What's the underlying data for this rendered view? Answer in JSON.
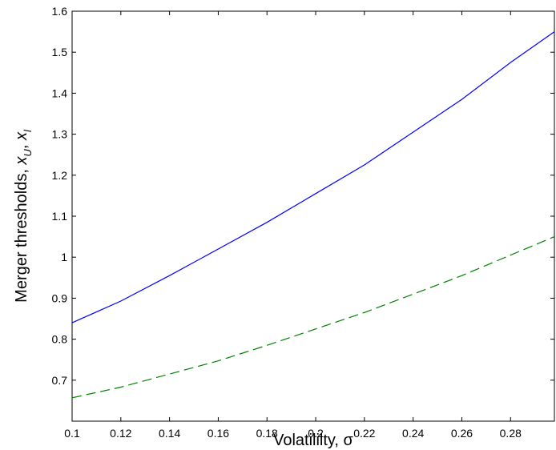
{
  "chart_data": {
    "type": "line",
    "xlabel": "Volatililty, σ",
    "ylabel": {
      "text": "Merger thresholds, ",
      "var1": "x",
      "sub1": "U",
      "sep": ", ",
      "var2": "x",
      "sub2": "l"
    },
    "xlim": [
      0.1,
      0.298
    ],
    "ylim": [
      0.6,
      1.6
    ],
    "xticks": [
      0.1,
      0.12,
      0.14,
      0.16,
      0.18,
      0.2,
      0.22,
      0.24,
      0.26,
      0.28
    ],
    "xtick_labels": [
      "0.1",
      "0.12",
      "0.14",
      "0.16",
      "0.18",
      "0.2",
      "0.22",
      "0.24",
      "0.26",
      "0.28"
    ],
    "yticks": [
      0.7,
      0.8,
      0.9,
      1.0,
      1.1,
      1.2,
      1.3,
      1.4,
      1.5,
      1.6
    ],
    "ytick_labels": [
      "0.7",
      "0.8",
      "0.9",
      "1",
      "1.1",
      "1.2",
      "1.3",
      "1.4",
      "1.5",
      "1.6"
    ],
    "grid": false,
    "series": [
      {
        "color": "#0000ff",
        "style": "solid",
        "x": [
          0.1,
          0.12,
          0.14,
          0.16,
          0.18,
          0.2,
          0.22,
          0.24,
          0.26,
          0.28,
          0.298
        ],
        "y": [
          0.84,
          0.893,
          0.955,
          1.02,
          1.085,
          1.155,
          1.225,
          1.305,
          1.385,
          1.475,
          1.55
        ]
      },
      {
        "color": "#008000",
        "style": "dashed",
        "x": [
          0.1,
          0.12,
          0.14,
          0.16,
          0.18,
          0.2,
          0.22,
          0.24,
          0.26,
          0.28,
          0.298
        ],
        "y": [
          0.657,
          0.683,
          0.715,
          0.747,
          0.785,
          0.825,
          0.865,
          0.91,
          0.955,
          1.005,
          1.05
        ]
      }
    ]
  }
}
